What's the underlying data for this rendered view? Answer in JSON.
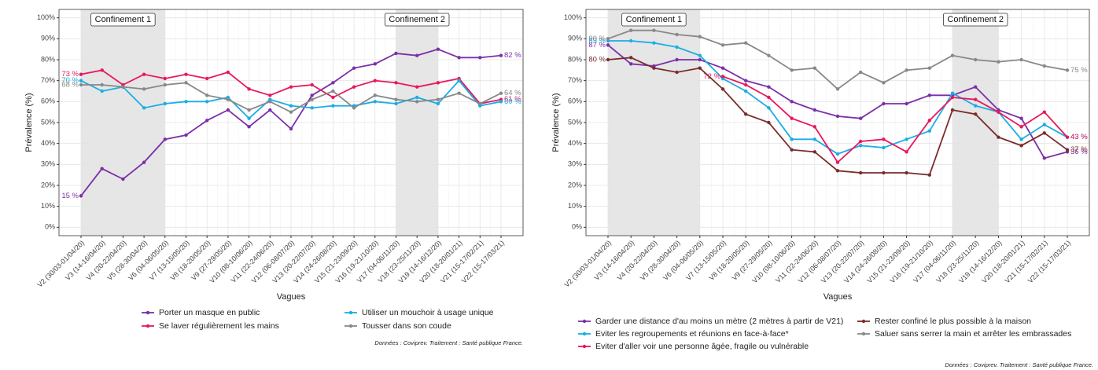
{
  "chart_data": [
    {
      "type": "line",
      "x_label": "Vagues",
      "y_label": "Prévalence (%)",
      "source": "Données : Coviprev. Traitement : Santé publique France.",
      "grid": true,
      "categories": [
        "V2 (30/03-01/04/20)",
        "V3 (14-16/04/20)",
        "V4 (20-22/04/20)",
        "V5 (28-30/04/20)",
        "V6 (04-06/05/20)",
        "V7 (13-15/05/20)",
        "V8 (18-20/05/20)",
        "V9 (27-29/05/20)",
        "V10 (08-10/06/20)",
        "V11 (22-24/06/20)",
        "V12 (06-08/07/20)",
        "V13 (20-22/07/20)",
        "V14 (24-26/08/20)",
        "V15 (21-23/09/20)",
        "V16 (19-21/10/20)",
        "V17 (04-06/11/20)",
        "V18 (23-25/11/20)",
        "V19 (14-16/12/20)",
        "V20 (18-20/01/21)",
        "V21 (15-17/02/21)",
        "V22 (15-17/03/21)"
      ],
      "shaded_regions": [
        {
          "label": "Confinement 1",
          "from": "V2 (30/03-01/04/20)",
          "to": "V6 (04-06/05/20)"
        },
        {
          "label": "Confinement 2",
          "from": "V17 (04-06/11/20)",
          "to": "V19 (14-16/12/20)"
        }
      ],
      "ylim": [
        -4,
        104
      ],
      "yticks": [
        {
          "value": 0,
          "label": "0%"
        },
        {
          "value": 10,
          "label": "10%"
        },
        {
          "value": 20,
          "label": "20%"
        },
        {
          "value": 30,
          "label": "30%"
        },
        {
          "value": 40,
          "label": "40%"
        },
        {
          "value": 50,
          "label": "50%"
        },
        {
          "value": 60,
          "label": "60%"
        },
        {
          "value": 70,
          "label": "70%"
        },
        {
          "value": 80,
          "label": "80%"
        },
        {
          "value": 90,
          "label": "90%"
        },
        {
          "value": 100,
          "label": "100%"
        }
      ],
      "series": [
        {
          "name": "Porter un masque en public",
          "color": "#7b2fa8",
          "values": [
            15,
            28,
            23,
            31,
            42,
            44,
            51,
            56,
            48,
            56,
            47,
            63,
            69,
            76,
            78,
            83,
            82,
            85,
            81,
            81,
            82
          ],
          "value_labels": [
            "15 %",
            null,
            null,
            null,
            null,
            null,
            null,
            null,
            null,
            null,
            null,
            null,
            null,
            null,
            null,
            null,
            null,
            null,
            null,
            null,
            "82 %"
          ]
        },
        {
          "name": "Se laver régulièrement les mains",
          "color": "#e8175d",
          "values": [
            73,
            75,
            68,
            73,
            71,
            73,
            71,
            74,
            66,
            63,
            67,
            68,
            62,
            67,
            70,
            69,
            67,
            69,
            71,
            59,
            61
          ],
          "value_labels": [
            "73 %",
            null,
            null,
            null,
            null,
            null,
            null,
            null,
            null,
            null,
            null,
            null,
            null,
            null,
            null,
            null,
            null,
            null,
            null,
            null,
            "61 %"
          ]
        },
        {
          "name": "Utiliser un mouchoir à usage unique",
          "color": "#1aade4",
          "values": [
            70,
            65,
            67,
            57,
            59,
            60,
            60,
            62,
            52,
            61,
            58,
            57,
            58,
            58,
            60,
            59,
            62,
            59,
            70,
            58,
            60
          ],
          "value_labels": [
            "70 %",
            null,
            null,
            null,
            null,
            null,
            null,
            null,
            null,
            null,
            null,
            null,
            null,
            null,
            null,
            null,
            null,
            null,
            null,
            null,
            "60 %"
          ]
        },
        {
          "name": "Tousser dans son coude",
          "color": "#888888",
          "values": [
            68,
            68,
            67,
            66,
            68,
            69,
            63,
            61,
            56,
            60,
            55,
            61,
            65,
            57,
            63,
            61,
            60,
            61,
            64,
            59,
            64
          ],
          "value_labels": [
            "68 %",
            null,
            null,
            null,
            null,
            null,
            null,
            null,
            null,
            null,
            null,
            null,
            null,
            null,
            null,
            null,
            null,
            null,
            null,
            null,
            "64 %"
          ]
        }
      ]
    },
    {
      "type": "line",
      "x_label": "Vagues",
      "y_label": "Prévalence (%)",
      "source": "Données : Coviprev. Traitement : Santé publique France.",
      "grid": true,
      "categories": [
        "V2 (30/03-01/04/20)",
        "V3 (14-16/04/20)",
        "V4 (20-22/04/20)",
        "V5 (28-30/04/20)",
        "V6 (04-06/05/20)",
        "V7 (13-15/05/20)",
        "V8 (18-20/05/20)",
        "V9 (27-29/05/20)",
        "V10 (08-10/06/20)",
        "V11 (22-24/06/20)",
        "V12 (06-08/07/20)",
        "V13 (20-22/07/20)",
        "V14 (24-26/08/20)",
        "V15 (21-23/09/20)",
        "V16 (19-21/10/20)",
        "V17 (04-06/11/20)",
        "V18 (23-25/11/20)",
        "V19 (14-16/12/20)",
        "V20 (18-20/01/21)",
        "V21 (15-17/02/21)",
        "V22 (15-17/03/21)"
      ],
      "shaded_regions": [
        {
          "label": "Confinement 1",
          "from": "V2 (30/03-01/04/20)",
          "to": "V6 (04-06/05/20)"
        },
        {
          "label": "Confinement 2",
          "from": "V17 (04-06/11/20)",
          "to": "V19 (14-16/12/20)"
        }
      ],
      "ylim": [
        -4,
        104
      ],
      "yticks": [
        {
          "value": 0,
          "label": "0%"
        },
        {
          "value": 10,
          "label": "10%"
        },
        {
          "value": 20,
          "label": "20%"
        },
        {
          "value": 30,
          "label": "30%"
        },
        {
          "value": 40,
          "label": "40%"
        },
        {
          "value": 50,
          "label": "50%"
        },
        {
          "value": 60,
          "label": "60%"
        },
        {
          "value": 70,
          "label": "70%"
        },
        {
          "value": 80,
          "label": "80%"
        },
        {
          "value": 90,
          "label": "90%"
        },
        {
          "value": 100,
          "label": "100%"
        }
      ],
      "series": [
        {
          "name": "Garder une distance d'au moins un mètre (2 mètres à partir de V21)",
          "color": "#7b2fa8",
          "values": [
            87,
            78,
            77,
            80,
            80,
            76,
            70,
            67,
            60,
            56,
            53,
            52,
            59,
            59,
            63,
            63,
            67,
            56,
            52,
            33,
            36
          ],
          "value_labels": [
            "87 %",
            null,
            null,
            null,
            null,
            null,
            null,
            null,
            null,
            null,
            null,
            null,
            null,
            null,
            null,
            null,
            null,
            null,
            null,
            null,
            "36 %"
          ]
        },
        {
          "name": "Eviter les regroupements et réunions en face-à-face*",
          "color": "#1aade4",
          "values": [
            89,
            89,
            88,
            86,
            82,
            71,
            65,
            57,
            42,
            42,
            35,
            39,
            38,
            42,
            46,
            64,
            58,
            55,
            42,
            49,
            43
          ],
          "value_labels": [
            "89 %",
            null,
            null,
            null,
            null,
            null,
            null,
            null,
            null,
            null,
            null,
            null,
            null,
            null,
            null,
            null,
            null,
            null,
            null,
            null,
            "43 %"
          ]
        },
        {
          "name": "Eviter d'aller voir une personne âgée, fragile ou vulnérable",
          "color": "#e8175d",
          "values": [
            null,
            null,
            null,
            null,
            null,
            72,
            68,
            62,
            52,
            48,
            31,
            41,
            42,
            36,
            51,
            62,
            61,
            55,
            48,
            55,
            43
          ],
          "value_labels": [
            null,
            null,
            null,
            null,
            null,
            "72 %",
            null,
            null,
            null,
            null,
            null,
            null,
            null,
            null,
            null,
            null,
            null,
            null,
            null,
            null,
            "43 %"
          ]
        },
        {
          "name": "Rester confiné le plus possible à la maison",
          "color": "#7b2c2c",
          "values": [
            80,
            81,
            76,
            74,
            76,
            66,
            54,
            50,
            37,
            36,
            27,
            26,
            26,
            26,
            25,
            56,
            54,
            43,
            39,
            45,
            37
          ],
          "value_labels": [
            "80 %",
            null,
            null,
            null,
            null,
            null,
            null,
            null,
            null,
            null,
            null,
            null,
            null,
            null,
            null,
            null,
            null,
            null,
            null,
            null,
            "37 %"
          ]
        },
        {
          "name": "Saluer sans serrer la main et arrêter les embrassades",
          "color": "#888888",
          "values": [
            90,
            94,
            94,
            92,
            91,
            87,
            88,
            82,
            75,
            76,
            66,
            74,
            69,
            75,
            76,
            82,
            80,
            79,
            80,
            77,
            75
          ],
          "value_labels": [
            "90 %",
            null,
            null,
            null,
            null,
            null,
            null,
            null,
            null,
            null,
            null,
            null,
            null,
            null,
            null,
            null,
            null,
            null,
            null,
            null,
            "75 %"
          ]
        }
      ]
    }
  ]
}
